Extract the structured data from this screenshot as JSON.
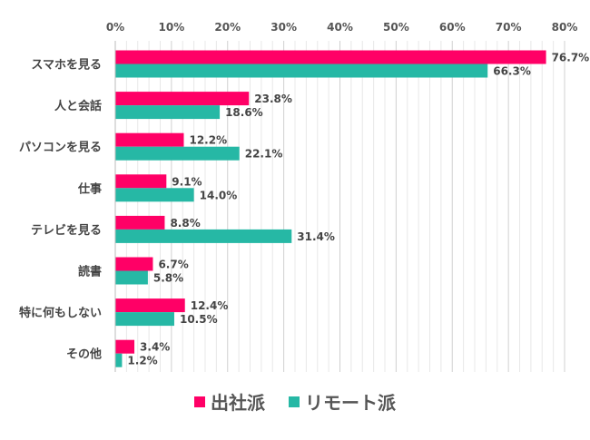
{
  "chart_data": {
    "type": "bar",
    "orientation": "horizontal",
    "categories": [
      "スマホを見る",
      "人と会話",
      "パソコンを見る",
      "仕事",
      "テレビを見る",
      "読書",
      "特に何もしない",
      "その他"
    ],
    "series": [
      {
        "name": "出社派",
        "color": "#FF0066",
        "values": [
          76.7,
          23.8,
          12.2,
          9.1,
          8.8,
          6.7,
          12.4,
          3.4
        ]
      },
      {
        "name": "リモート派",
        "color": "#26B8A5",
        "values": [
          66.3,
          18.6,
          22.1,
          14.0,
          31.4,
          5.8,
          10.5,
          1.2
        ]
      }
    ],
    "xlim": [
      0,
      80
    ],
    "xticks": [
      "0%",
      "10%",
      "20%",
      "30%",
      "40%",
      "50%",
      "60%",
      "70%",
      "80%"
    ],
    "x_axis_position": "top",
    "grid": true,
    "legend": "bottom",
    "data_label_suffix": "%"
  }
}
